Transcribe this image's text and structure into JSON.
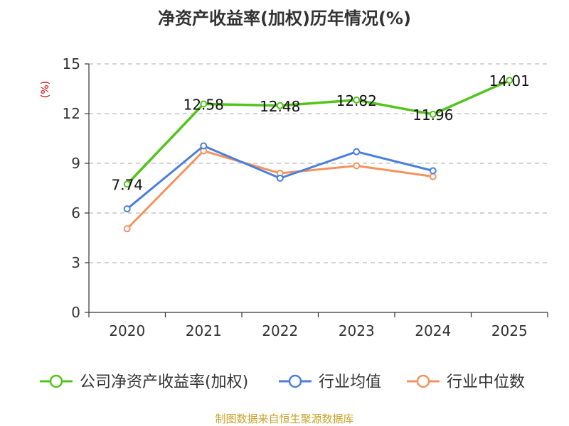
{
  "chart_data": {
    "type": "line",
    "title": "净资产收益率(加权)历年情况(%)",
    "ylabel": "(%)",
    "xlabel": "",
    "categories": [
      "2020",
      "2021",
      "2022",
      "2023",
      "2024",
      "2025"
    ],
    "ylim": [
      0,
      15
    ],
    "yticks": [
      0,
      3,
      6,
      9,
      12,
      15
    ],
    "grid": "horizontal-dashed",
    "legend_position": "bottom",
    "series": [
      {
        "name": "公司净资产收益率(加权)",
        "color": "#52c41a",
        "values": [
          7.74,
          12.58,
          12.48,
          12.82,
          11.96,
          14.01
        ],
        "labels": [
          "7.74",
          "12.58",
          "12.48",
          "12.82",
          "11.96",
          "14.01"
        ]
      },
      {
        "name": "行业均值",
        "color": "#4a7fdb",
        "values": [
          6.25,
          10.05,
          8.1,
          9.7,
          8.55,
          null
        ]
      },
      {
        "name": "行业中位数",
        "color": "#f4935f",
        "values": [
          5.05,
          9.75,
          8.4,
          8.85,
          8.2,
          null
        ]
      }
    ]
  },
  "footer": {
    "source": "制图数据来自恒生聚源数据库"
  }
}
